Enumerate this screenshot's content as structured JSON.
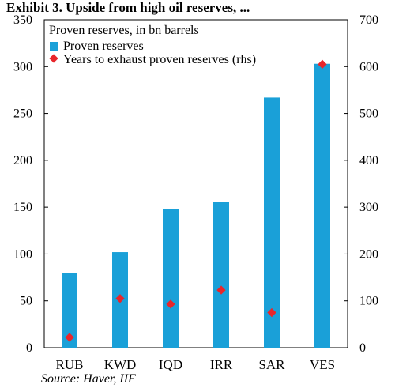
{
  "header": {
    "title": "Exhibit 3. Upside from high oil reserves, ..."
  },
  "source": "Source: Haver, IIF",
  "colors": {
    "bar": "#1aa0d8",
    "marker": "#e8262b"
  },
  "chart_data": {
    "type": "bar",
    "title": "Proven reserves, in bn barrels",
    "categories": [
      "RUB",
      "KWD",
      "IQD",
      "IRR",
      "SAR",
      "VES"
    ],
    "series": [
      {
        "name": "Proven reserves",
        "kind": "bar",
        "axis": "left",
        "values": [
          80,
          102,
          148,
          156,
          267,
          303
        ]
      },
      {
        "name": "Years to exhaust proven reserves (rhs)",
        "kind": "marker",
        "axis": "right",
        "values": [
          22,
          105,
          93,
          123,
          75,
          605
        ]
      }
    ],
    "ylim_left": [
      0,
      350
    ],
    "yticks_left": [
      0,
      50,
      100,
      150,
      200,
      250,
      300,
      350
    ],
    "ylim_right": [
      0,
      700
    ],
    "yticks_right": [
      0,
      100,
      200,
      300,
      400,
      500,
      600,
      700
    ],
    "legend": "top-left",
    "grid": false
  }
}
